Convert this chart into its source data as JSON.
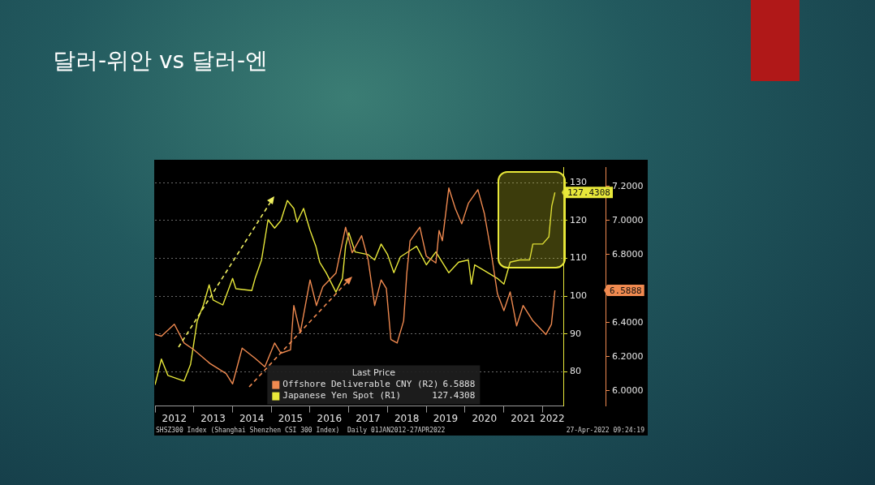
{
  "chart_data": {
    "type": "line",
    "title": "달러-위안 vs 달러-엔",
    "legend_title": "Last Price",
    "legend": "bottom",
    "grid": "y",
    "xlim": [
      "2012-01-01",
      "2022-07-15"
    ],
    "xticks": [
      {
        "value": "2012-01-01",
        "label": null
      },
      {
        "value": "2012-07-01",
        "label": "2012"
      },
      {
        "value": "2013-01-01",
        "label": null
      },
      {
        "value": "2013-07-01",
        "label": "2013"
      },
      {
        "value": "2014-01-01",
        "label": null
      },
      {
        "value": "2014-07-01",
        "label": "2014"
      },
      {
        "value": "2015-01-01",
        "label": null
      },
      {
        "value": "2015-07-01",
        "label": "2015"
      },
      {
        "value": "2016-01-01",
        "label": null
      },
      {
        "value": "2016-07-01",
        "label": "2016"
      },
      {
        "value": "2017-01-01",
        "label": null
      },
      {
        "value": "2017-07-01",
        "label": "2017"
      },
      {
        "value": "2018-01-01",
        "label": null
      },
      {
        "value": "2018-07-01",
        "label": "2018"
      },
      {
        "value": "2019-01-01",
        "label": null
      },
      {
        "value": "2019-07-01",
        "label": "2019"
      },
      {
        "value": "2020-01-01",
        "label": null
      },
      {
        "value": "2020-07-01",
        "label": "2020"
      },
      {
        "value": "2021-01-01",
        "label": null
      },
      {
        "value": "2021-07-01",
        "label": "2021"
      },
      {
        "value": "2022-01-01",
        "label": null
      },
      {
        "value": "2022-04-01",
        "label": "2022"
      }
    ],
    "ylim": [
      71,
      134
    ],
    "yticks": [
      80,
      90,
      100,
      110,
      120,
      130
    ],
    "y2lim": [
      5.91,
      7.31
    ],
    "y2ticks": [
      {
        "value": 6.0,
        "label": "6.0000"
      },
      {
        "value": 6.2,
        "label": "6.2000"
      },
      {
        "value": 6.4,
        "label": "6.4000"
      },
      {
        "value": 6.8,
        "label": "6.8000"
      },
      {
        "value": 7.0,
        "label": "7.0000"
      },
      {
        "value": 7.2,
        "label": "7.2000"
      }
    ],
    "series": [
      {
        "name": "Offshore Deliverable CNY (R2)",
        "color": "#f08a50",
        "axis": "y2",
        "x": [
          "2012-01",
          "2012-03",
          "2012-07",
          "2012-10",
          "2013-01",
          "2013-06",
          "2013-11",
          "2014-01",
          "2014-04",
          "2014-08",
          "2014-11",
          "2015-02",
          "2015-04",
          "2015-07",
          "2015-08",
          "2015-10",
          "2016-01",
          "2016-03",
          "2016-05",
          "2016-09",
          "2016-12",
          "2017-02",
          "2017-05",
          "2017-07",
          "2017-09",
          "2017-11",
          "2017-12-20",
          "2018-02",
          "2018-04",
          "2018-06",
          "2018-07",
          "2018-08",
          "2018-11",
          "2019-01",
          "2019-04",
          "2019-05",
          "2019-06",
          "2019-08",
          "2019-10",
          "2019-12",
          "2020-02",
          "2020-05",
          "2020-07",
          "2020-09",
          "2020-11",
          "2021-01",
          "2021-03",
          "2021-05",
          "2021-07",
          "2021-10",
          "2022-02",
          "2022-03-25",
          "2022-04-27"
        ],
        "values": [
          6.33,
          6.32,
          6.39,
          6.28,
          6.24,
          6.16,
          6.1,
          6.04,
          6.25,
          6.19,
          6.14,
          6.28,
          6.22,
          6.24,
          6.5,
          6.34,
          6.65,
          6.5,
          6.61,
          6.69,
          6.96,
          6.81,
          6.91,
          6.77,
          6.5,
          6.65,
          6.6,
          6.3,
          6.28,
          6.41,
          6.69,
          6.88,
          6.96,
          6.79,
          6.75,
          6.94,
          6.88,
          7.19,
          7.07,
          6.98,
          7.1,
          7.18,
          7.04,
          6.82,
          6.57,
          6.47,
          6.58,
          6.38,
          6.5,
          6.41,
          6.33,
          6.39,
          6.5888
        ]
      },
      {
        "name": "Japanese Yen Spot (R1)",
        "color": "#e8e83a",
        "x": [
          "2012-01",
          "2012-03",
          "2012-05",
          "2012-10",
          "2012-12",
          "2013-02",
          "2013-04",
          "2013-05-25",
          "2013-07",
          "2013-10",
          "2014-01",
          "2014-02",
          "2014-07",
          "2014-08",
          "2014-10",
          "2014-12",
          "2015-02",
          "2015-04",
          "2015-06",
          "2015-08",
          "2015-09",
          "2015-11",
          "2016-01",
          "2016-02-25",
          "2016-04",
          "2016-06",
          "2016-09",
          "2016-11",
          "2016-12",
          "2017-01",
          "2017-03",
          "2017-07",
          "2017-09",
          "2017-11",
          "2018-01",
          "2018-03",
          "2018-05",
          "2018-10",
          "2019-01",
          "2019-04",
          "2019-08",
          "2019-11",
          "2020-02",
          "2020-03",
          "2020-04",
          "2020-07",
          "2020-11",
          "2021-01",
          "2021-03",
          "2021-06",
          "2021-09",
          "2021-10",
          "2022-01",
          "2022-03-01",
          "2022-03-28",
          "2022-04-27"
        ],
        "values": [
          76.6,
          83.4,
          79.1,
          77.6,
          82,
          93.4,
          97.7,
          103,
          99,
          97.7,
          104.7,
          102,
          101.5,
          104.7,
          109.6,
          120.2,
          118,
          120,
          125.3,
          123.2,
          119.6,
          123.2,
          117.4,
          113.2,
          109,
          106.2,
          101.1,
          104.7,
          113.2,
          116.8,
          111.7,
          111,
          109.6,
          113.8,
          111,
          106.2,
          110.4,
          113.2,
          108.3,
          111.7,
          106.2,
          109,
          109.6,
          103.2,
          108.3,
          106.8,
          104.7,
          103.2,
          109,
          109.6,
          109.6,
          113.8,
          113.8,
          115.7,
          123.8,
          127.4308
        ]
      }
    ],
    "annotations": [
      "6.5888",
      "127.4308",
      "SHSZ300 Index (Shanghai Shenzhen CSI 300 Index)  Daily 01JAN2012-27APR2022",
      "27-Apr-2022 09:24:19"
    ]
  }
}
